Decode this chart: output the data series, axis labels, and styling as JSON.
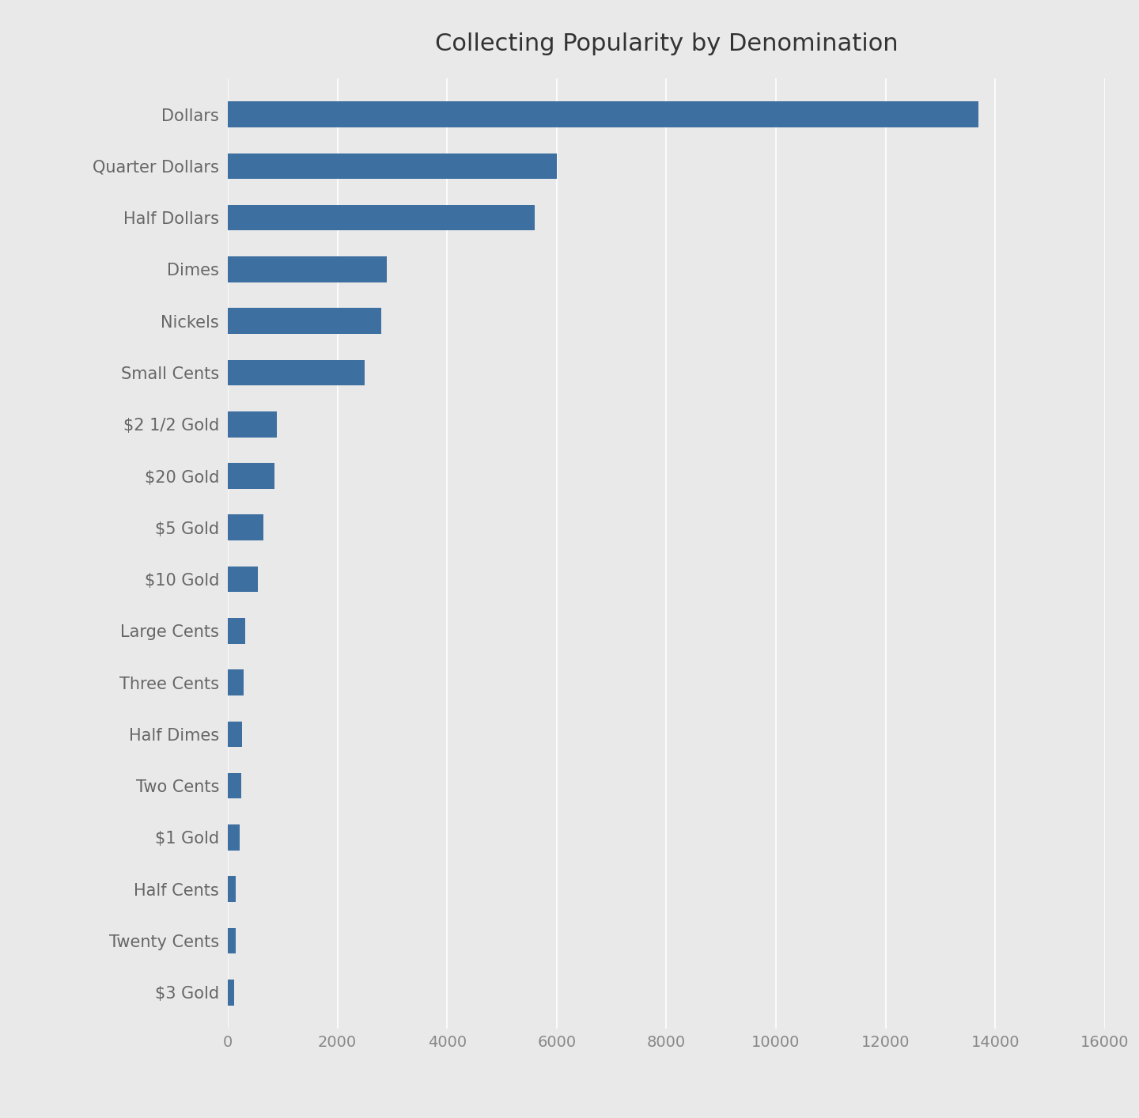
{
  "title": "Collecting Popularity by Denomination",
  "categories": [
    "Dollars",
    "Quarter Dollars",
    "Half Dollars",
    "Dimes",
    "Nickels",
    "Small Cents",
    "$2 1/2 Gold",
    "$20 Gold",
    "$5 Gold",
    "$10 Gold",
    "Large Cents",
    "Three Cents",
    "Half Dimes",
    "Two Cents",
    "$1 Gold",
    "Half Cents",
    "Twenty Cents",
    "$3 Gold"
  ],
  "values": [
    13700,
    6000,
    5600,
    2900,
    2800,
    2500,
    900,
    850,
    650,
    550,
    320,
    290,
    260,
    240,
    220,
    150,
    140,
    110
  ],
  "bar_color": "#3D6FA0",
  "background_color": "#E9E9E9",
  "xlim": [
    0,
    16000
  ],
  "xticks": [
    0,
    2000,
    4000,
    6000,
    8000,
    10000,
    12000,
    14000,
    16000
  ],
  "title_fontsize": 22,
  "label_fontsize": 15,
  "tick_fontsize": 14,
  "bar_height": 0.5
}
